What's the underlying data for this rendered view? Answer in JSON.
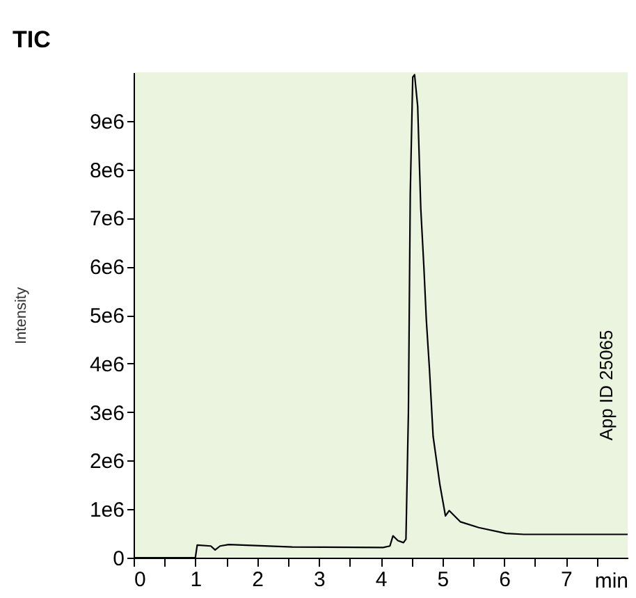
{
  "chart_data": {
    "type": "line",
    "title": "TIC",
    "xlabel": "min",
    "ylabel": "Intensity",
    "x": [
      0,
      1.0,
      1.03,
      1.25,
      1.32,
      1.4,
      1.54,
      2.57,
      4.04,
      4.15,
      4.2,
      4.28,
      4.37,
      4.41,
      4.45,
      4.48,
      4.52,
      4.55,
      4.6,
      4.65,
      4.7,
      4.74,
      4.79,
      4.85,
      4.96,
      5.05,
      5.11,
      5.29,
      5.59,
      6.03,
      6.32,
      7.06,
      8.0
    ],
    "series": [
      {
        "color": "#000000",
        "values": [
          0,
          0,
          260000,
          240000,
          160000,
          240000,
          270000,
          220000,
          210000,
          240000,
          450000,
          350000,
          310000,
          380000,
          3000000,
          7500000,
          9900000,
          9950000,
          9300000,
          7200000,
          6000000,
          4900000,
          3900000,
          2500000,
          1500000,
          860000,
          970000,
          740000,
          620000,
          500000,
          480000,
          480000,
          480000
        ]
      }
    ],
    "xlim": [
      0,
      8
    ],
    "ylim": [
      0,
      10000000
    ],
    "xticks": [
      0,
      {
        "value": 0.5,
        "label": null
      },
      1,
      {
        "value": 1.5,
        "label": null
      },
      2,
      {
        "value": 2.5,
        "label": null
      },
      3,
      {
        "value": 3.5,
        "label": null
      },
      4,
      {
        "value": 4.5,
        "label": null
      },
      5,
      {
        "value": 5.5,
        "label": null
      },
      6,
      {
        "value": 6.5,
        "label": null
      },
      7,
      {
        "value": 7.5,
        "label": null
      }
    ],
    "yticks": [
      0,
      {
        "value": 1000000,
        "label": "1e6"
      },
      {
        "value": 2000000,
        "label": "2e6"
      },
      {
        "value": 3000000,
        "label": "3e6"
      },
      {
        "value": 4000000,
        "label": "4e6"
      },
      {
        "value": 5000000,
        "label": "5e6"
      },
      {
        "value": 6000000,
        "label": "6e6"
      },
      {
        "value": 7000000,
        "label": "7e6"
      },
      {
        "value": 8000000,
        "label": "8e6"
      },
      {
        "value": 9000000,
        "label": "9e6"
      }
    ],
    "annotations": [
      "App ID 25065"
    ],
    "grid": false,
    "marker": "none",
    "line_style": "solid"
  }
}
